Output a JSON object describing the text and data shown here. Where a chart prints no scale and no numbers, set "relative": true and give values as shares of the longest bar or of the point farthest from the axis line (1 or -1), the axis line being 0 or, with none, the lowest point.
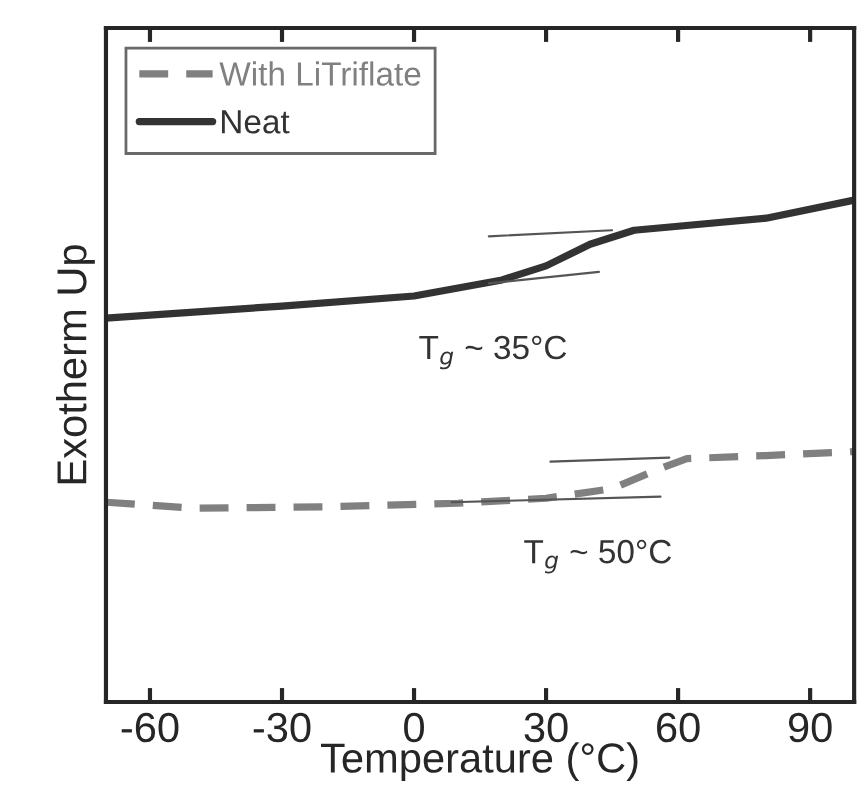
{
  "chart_data": {
    "type": "line",
    "relative": true,
    "xlabel": "Temperature (°C)",
    "ylabel": "Exotherm Up",
    "xlim": [
      -70,
      100
    ],
    "xticks": [
      -60,
      -30,
      0,
      30,
      60,
      90
    ],
    "legend": "top left",
    "grid": false,
    "series": [
      {
        "name": "With LiTriflate",
        "color": "#808080",
        "line_style": "dashed",
        "x": [
          -70,
          -50,
          -20,
          10,
          30,
          45,
          55,
          62,
          80,
          100
        ],
        "values": [
          0.398,
          0.386,
          0.389,
          0.396,
          0.406,
          0.425,
          0.462,
          0.485,
          0.491,
          0.499
        ]
      },
      {
        "name": "Neat",
        "color": "#333333",
        "line_style": "solid",
        "x": [
          -70,
          -30,
          0,
          20,
          30,
          40,
          50,
          60,
          80,
          100
        ],
        "values": [
          0.765,
          0.789,
          0.809,
          0.841,
          0.869,
          0.912,
          0.94,
          0.948,
          0.964,
          1.0
        ]
      },
      {
        "color": "#555555",
        "line_style": "solid",
        "x": [
          17,
          45
        ],
        "values": [
          0.928,
          0.94
        ]
      },
      {
        "color": "#555555",
        "line_style": "solid",
        "x": [
          17,
          42
        ],
        "values": [
          0.834,
          0.857
        ]
      },
      {
        "color": "#555555",
        "line_style": "solid",
        "x": [
          31,
          58
        ],
        "values": [
          0.479,
          0.487
        ]
      },
      {
        "color": "#555555",
        "line_style": "solid",
        "x": [
          8.5,
          56
        ],
        "values": [
          0.398,
          0.409
        ]
      }
    ],
    "annotations": [
      {
        "text": "T$_{g}$ ~ 35°C",
        "x": 35,
        "y": 0.89
      },
      {
        "text": "T$_{g}$ ~ 50°C",
        "x": 50,
        "y": 0.45
      }
    ]
  }
}
